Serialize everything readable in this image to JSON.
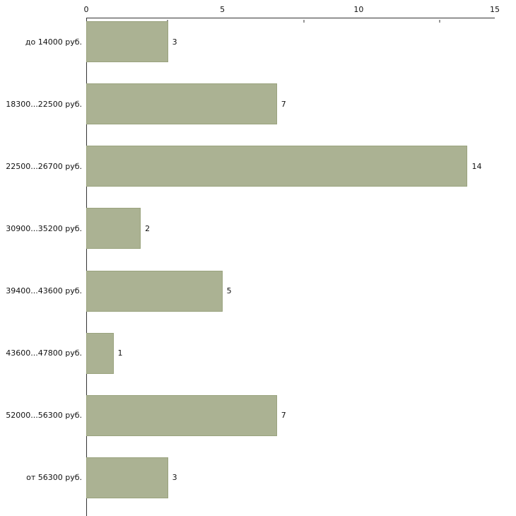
{
  "chart_data": {
    "type": "bar",
    "orientation": "horizontal",
    "title": "",
    "xlabel": "",
    "ylabel": "",
    "categories": [
      "до 14000 руб.",
      "18300...22500 руб.",
      "22500...26700 руб.",
      "30900...35200 руб.",
      "39400...43600 руб.",
      "43600...47800 руб.",
      "52000...56300 руб.",
      "от 56300 руб."
    ],
    "values": [
      3,
      7,
      14,
      2,
      5,
      1,
      7,
      3
    ],
    "xlim": [
      0,
      15
    ],
    "x_ticks": [
      0,
      5,
      10,
      15
    ],
    "grid": false,
    "legend": false,
    "bar_color": "#abb293",
    "bar_border_color": "#9aa37e",
    "axis_color": "#333333",
    "background_color": "#ffffff"
  }
}
